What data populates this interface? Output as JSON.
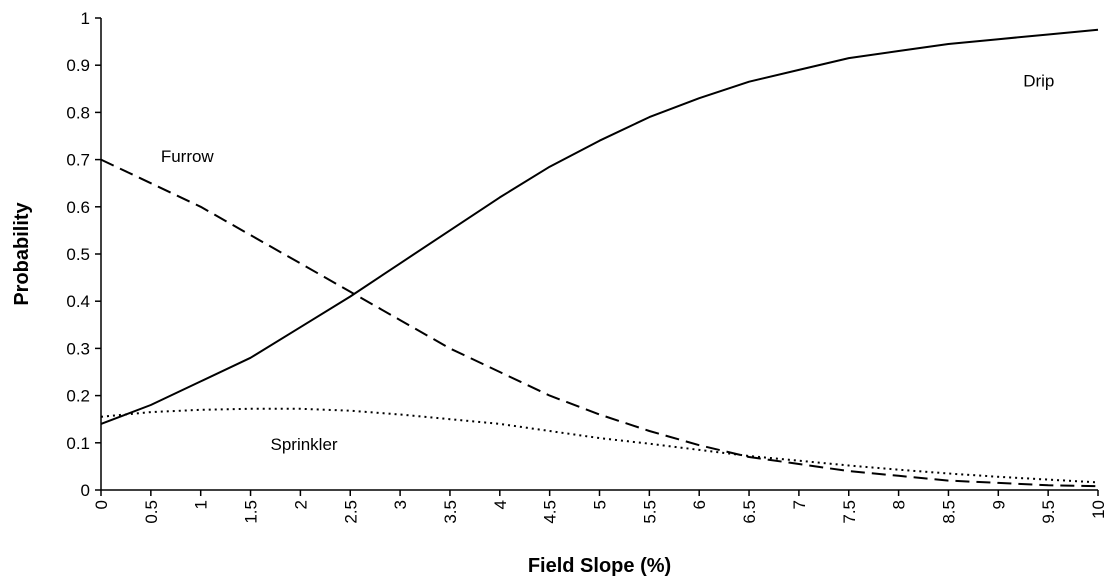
{
  "chart_data": {
    "type": "line",
    "title": "",
    "xlabel": "Field Slope (%)",
    "ylabel": "Probability",
    "xlim": [
      0,
      10
    ],
    "ylim": [
      0,
      1
    ],
    "grid": false,
    "x_ticks": [
      "0",
      "0.5",
      "1",
      "1.5",
      "2",
      "2.5",
      "3",
      "3.5",
      "4",
      "4.5",
      "5",
      "5.5",
      "6",
      "6.5",
      "7",
      "7.5",
      "8",
      "8.5",
      "9",
      "9.5",
      "10"
    ],
    "y_ticks": [
      "0",
      "0.1",
      "0.2",
      "0.3",
      "0.4",
      "0.5",
      "0.6",
      "0.7",
      "0.8",
      "0.9",
      "1"
    ],
    "x": [
      0,
      0.5,
      1,
      1.5,
      2,
      2.5,
      3,
      3.5,
      4,
      4.5,
      5,
      5.5,
      6,
      6.5,
      7,
      7.5,
      8,
      8.5,
      9,
      9.5,
      10
    ],
    "series": [
      {
        "name": "Drip",
        "style": "solid",
        "values": [
          0.14,
          0.18,
          0.23,
          0.28,
          0.345,
          0.41,
          0.48,
          0.55,
          0.62,
          0.685,
          0.74,
          0.79,
          0.83,
          0.865,
          0.89,
          0.915,
          0.93,
          0.945,
          0.955,
          0.965,
          0.975
        ]
      },
      {
        "name": "Furrow",
        "style": "dashed",
        "values": [
          0.7,
          0.65,
          0.6,
          0.54,
          0.48,
          0.42,
          0.36,
          0.3,
          0.25,
          0.2,
          0.16,
          0.125,
          0.095,
          0.07,
          0.055,
          0.04,
          0.03,
          0.02,
          0.015,
          0.01,
          0.008
        ]
      },
      {
        "name": "Sprinkler",
        "style": "dotted",
        "values": [
          0.155,
          0.165,
          0.17,
          0.172,
          0.172,
          0.168,
          0.16,
          0.15,
          0.14,
          0.125,
          0.11,
          0.098,
          0.085,
          0.072,
          0.062,
          0.052,
          0.043,
          0.035,
          0.028,
          0.022,
          0.016
        ]
      }
    ],
    "annotations": [
      {
        "text": "Drip",
        "series": "Drip"
      },
      {
        "text": "Furrow",
        "series": "Furrow"
      },
      {
        "text": "Sprinkler",
        "series": "Sprinkler"
      }
    ]
  }
}
